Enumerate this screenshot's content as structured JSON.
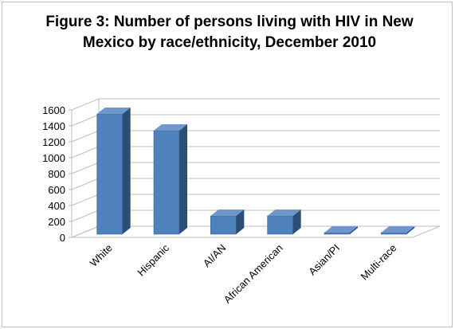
{
  "chart_data": {
    "type": "bar",
    "title": "Figure 3: Number of persons living with HIV in New Mexico by race/ethnicity, December 2010",
    "categories": [
      "White",
      "Hispanic",
      "AI/AN",
      "African American",
      "Asian/PI",
      "Multi-race"
    ],
    "values": [
      1510,
      1300,
      230,
      230,
      20,
      20
    ],
    "ylim": [
      0,
      1600
    ],
    "yticks": [
      "0",
      "200",
      "400",
      "600",
      "800",
      "1000",
      "1200",
      "1400",
      "1600"
    ],
    "grid": true,
    "bar_color": "#4f81bd",
    "bar_side_color": "#2c4d75",
    "bar_top_color": "#6f97cb",
    "legend": "none"
  }
}
